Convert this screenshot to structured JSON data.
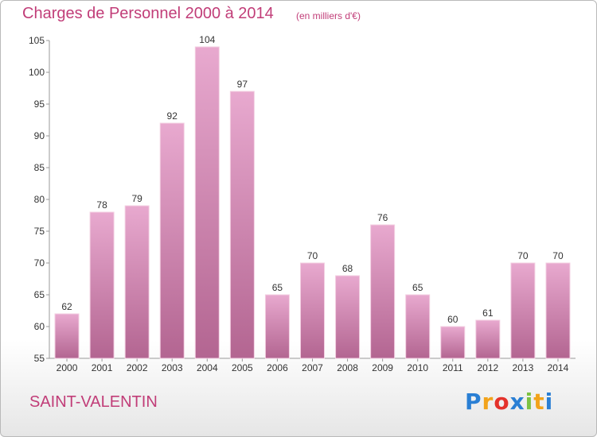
{
  "title": "Charges de Personnel 2000 à 2014",
  "subtitle": "(en milliers d'€)",
  "place": "SAINT-VALENTIN",
  "logo": {
    "text": "Proxiti",
    "letters": [
      "P",
      "r",
      "o",
      "x",
      "i",
      "t",
      "i"
    ],
    "colors": [
      "#2a7fd4",
      "#f2a31b",
      "#e4322b",
      "#2a7fd4",
      "#7cc242",
      "#f2a31b",
      "#2a7fd4"
    ]
  },
  "colors": {
    "accent": "#c13d78",
    "bar_top": "#e8a9cf",
    "bar_bottom": "#b36591",
    "axis": "#9a9a9a",
    "text": "#333333"
  },
  "chart_data": {
    "type": "bar",
    "categories": [
      "2000",
      "2001",
      "2002",
      "2003",
      "2004",
      "2005",
      "2006",
      "2007",
      "2008",
      "2009",
      "2010",
      "2011",
      "2012",
      "2013",
      "2014"
    ],
    "values": [
      62,
      78,
      79,
      92,
      104,
      97,
      65,
      70,
      68,
      76,
      65,
      60,
      61,
      70,
      70
    ],
    "title": "Charges de Personnel 2000 à 2014",
    "subtitle": "(en milliers d'€)",
    "xlabel": "",
    "ylabel": "",
    "ylim": [
      55,
      105
    ],
    "yticks": [
      55,
      60,
      65,
      70,
      75,
      80,
      85,
      90,
      95,
      100,
      105
    ],
    "grid": false,
    "data_labels": true
  }
}
